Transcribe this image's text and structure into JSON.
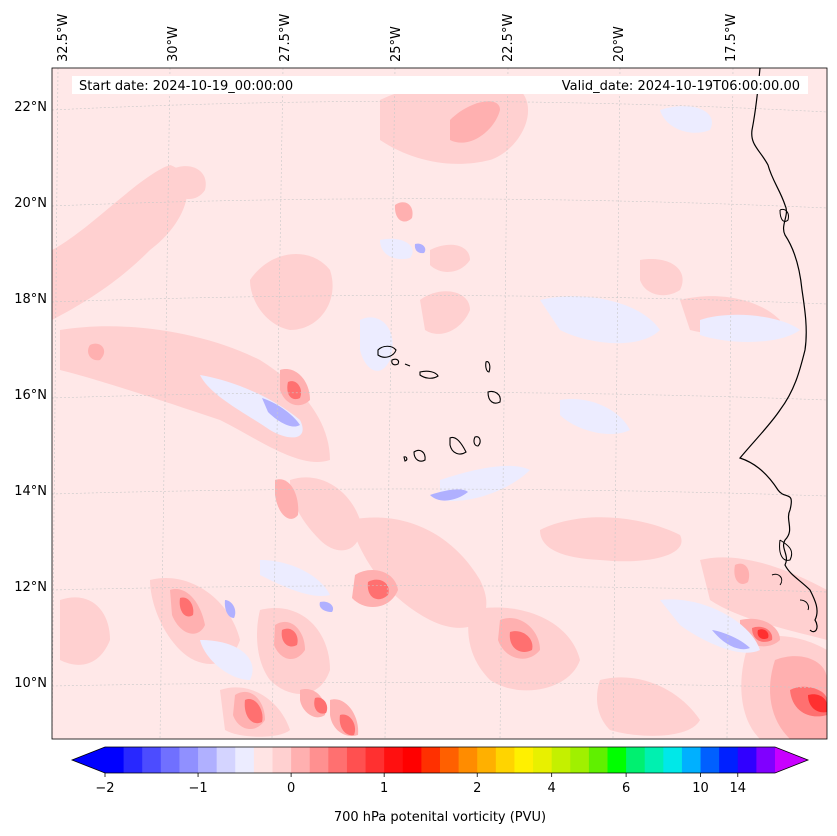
{
  "header": {
    "start_date": "Start date: 2024-10-19_00:00:00",
    "valid_date": "Valid_date: 2024-10-19T06:00:00.00"
  },
  "graticule": {
    "lon_labels": [
      "32.5°W",
      "30°W",
      "27.5°W",
      "25°W",
      "22.5°W",
      "20°W",
      "17.5°W"
    ],
    "lat_labels": [
      "22°N",
      "20°N",
      "18°N",
      "16°N",
      "14°N",
      "12°N",
      "10°N"
    ]
  },
  "colorbar": {
    "label": "700 hPa potenital vorticity (PVU)",
    "tick_labels": [
      "−2",
      "−1",
      "0",
      "1",
      "2",
      "4",
      "6",
      "10",
      "14"
    ],
    "colors": [
      "#0000ff",
      "#2828ff",
      "#4c4cff",
      "#7070ff",
      "#9090ff",
      "#b0b0ff",
      "#d4d4ff",
      "#ececff",
      "#ffe4e4",
      "#ffd0d0",
      "#ffb0b0",
      "#ff9090",
      "#ff7070",
      "#ff5050",
      "#ff3030",
      "#ff1010",
      "#ff0000",
      "#ff3000",
      "#ff6000",
      "#ff8c00",
      "#ffb000",
      "#ffd400",
      "#fff000",
      "#e8f000",
      "#c4f000",
      "#a0f000",
      "#60f000",
      "#00ff00",
      "#00f070",
      "#00f0b0",
      "#00e8e8",
      "#00b0ff",
      "#0060ff",
      "#0020ff",
      "#3000ff",
      "#8000ff"
    ],
    "extend_low_color": "#0000ff",
    "extend_high_color": "#c800ff"
  },
  "map": {
    "background_color": "#ffe8e8",
    "coastline_color": "#000000"
  }
}
